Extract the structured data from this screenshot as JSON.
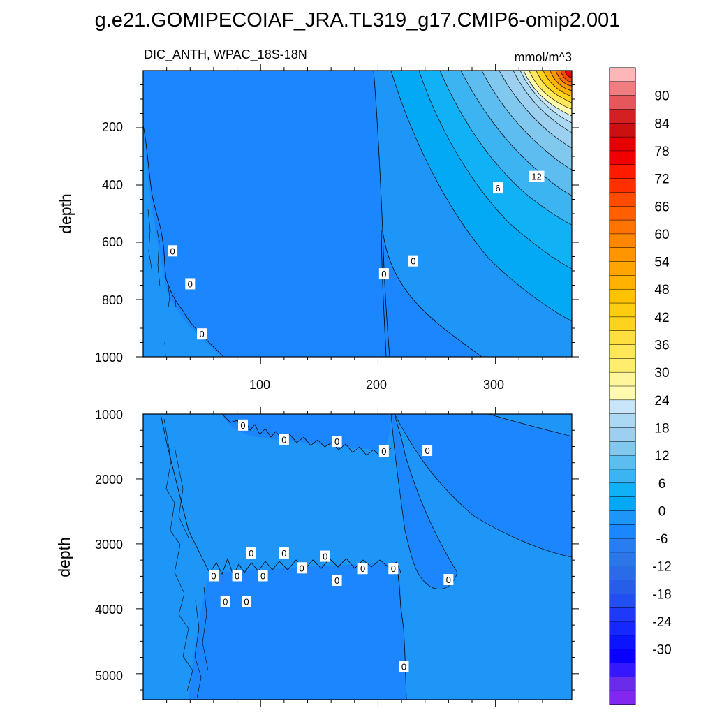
{
  "chart_data": {
    "type": "contour",
    "title": "g.e21.GOMIPECOIAF_JRA.TL319_g17.CMIP6-omip2.001",
    "subtitle_left": "DIC_ANTH, WPAC_18S-18N",
    "units": "mmol/m^3",
    "x_range": [
      0,
      365
    ],
    "panels": [
      {
        "name": "upper",
        "ylabel": "depth",
        "ylim": [
          0,
          1000
        ],
        "y_reversed": true,
        "yticks": [
          "200",
          "400",
          "600",
          "800",
          "1000"
        ],
        "xticks": [
          "100",
          "200",
          "300"
        ],
        "contour_labels": [
          {
            "text": "0",
            "x": 25,
            "y": 630
          },
          {
            "text": "0",
            "x": 40,
            "y": 745
          },
          {
            "text": "0",
            "x": 50,
            "y": 920
          },
          {
            "text": "0",
            "x": 205,
            "y": 710
          },
          {
            "text": "0",
            "x": 230,
            "y": 665
          },
          {
            "text": "6",
            "x": 302,
            "y": 410
          },
          {
            "text": "12",
            "x": 335,
            "y": 370
          }
        ]
      },
      {
        "name": "lower",
        "ylabel": "depth",
        "ylim": [
          1000,
          5400
        ],
        "y_reversed": true,
        "yticks": [
          "1000",
          "2000",
          "3000",
          "4000",
          "5000"
        ],
        "contour_labels": [
          {
            "text": "0",
            "x": 85,
            "y": 1170
          },
          {
            "text": "0",
            "x": 120,
            "y": 1390
          },
          {
            "text": "0",
            "x": 165,
            "y": 1420
          },
          {
            "text": "0",
            "x": 205,
            "y": 1570
          },
          {
            "text": "0",
            "x": 242,
            "y": 1560
          },
          {
            "text": "0",
            "x": 92,
            "y": 3140
          },
          {
            "text": "0",
            "x": 120,
            "y": 3140
          },
          {
            "text": "0",
            "x": 155,
            "y": 3190
          },
          {
            "text": "0",
            "x": 60,
            "y": 3490
          },
          {
            "text": "0",
            "x": 80,
            "y": 3490
          },
          {
            "text": "0",
            "x": 102,
            "y": 3490
          },
          {
            "text": "0",
            "x": 135,
            "y": 3370
          },
          {
            "text": "0",
            "x": 165,
            "y": 3560
          },
          {
            "text": "0",
            "x": 187,
            "y": 3380
          },
          {
            "text": "0",
            "x": 213,
            "y": 3380
          },
          {
            "text": "0",
            "x": 260,
            "y": 3550
          },
          {
            "text": "0",
            "x": 70,
            "y": 3890
          },
          {
            "text": "0",
            "x": 88,
            "y": 3890
          },
          {
            "text": "0",
            "x": 222,
            "y": 4890
          }
        ]
      }
    ],
    "colorbar": {
      "levels_min": -33,
      "levels_max": 96,
      "interval": 3,
      "tick_labels": [
        "90",
        "84",
        "78",
        "72",
        "66",
        "60",
        "54",
        "48",
        "42",
        "36",
        "30",
        "24",
        "18",
        "12",
        "6",
        "0",
        "-6",
        "-12",
        "-18",
        "-24",
        "-30"
      ],
      "colors_top_to_bottom": [
        "#FFB6B9",
        "#F07E80",
        "#E5575A",
        "#D42020",
        "#CC0F0F",
        "#E60000",
        "#F20000",
        "#FF1A00",
        "#FF2F00",
        "#FF4A00",
        "#FF5F00",
        "#FF7300",
        "#FF8700",
        "#FF9600",
        "#FFA500",
        "#FFB300",
        "#FFC200",
        "#FFCD10",
        "#FFD21E",
        "#FFDF40",
        "#FFE75A",
        "#FFED70",
        "#FFF59C",
        "#FFFAAD",
        "#C8E6F8",
        "#ABD8F2",
        "#9DD0F0",
        "#80C8EE",
        "#5EBDF0",
        "#3CB4F2",
        "#11B1F6",
        "#03A9F5",
        "#1E96F8",
        "#1C86FF",
        "#2A7DF0",
        "#2C76E8",
        "#2A6CE8",
        "#275EE8",
        "#2250F0",
        "#1E3AF8",
        "#1428FF",
        "#0A14FF",
        "#0A00FF",
        "#3518FF",
        "#6A2BEA",
        "#8226F0"
      ]
    }
  }
}
